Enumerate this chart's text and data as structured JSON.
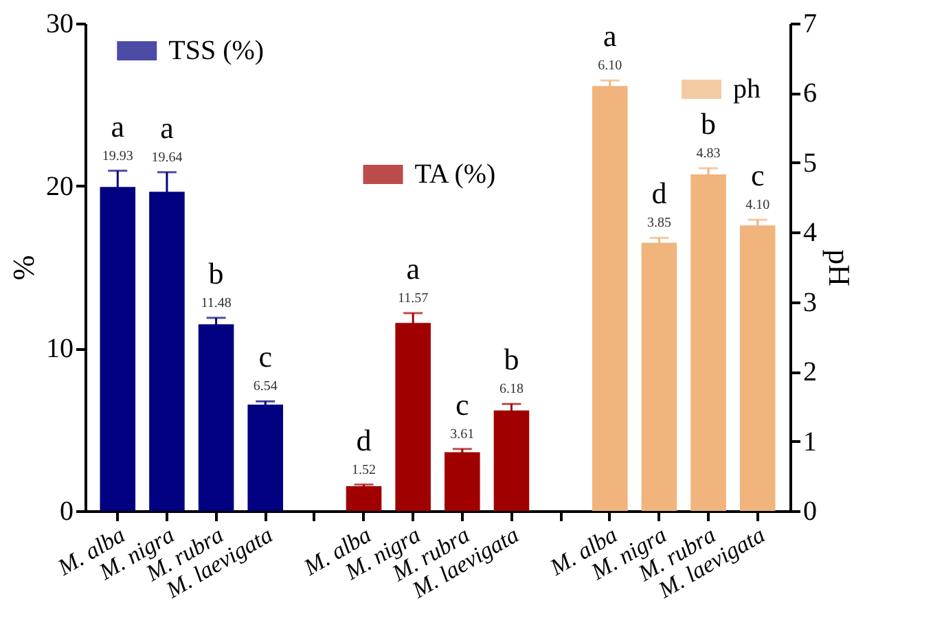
{
  "chart_data": {
    "type": "bar",
    "ylabel": "%",
    "y2label": "pH",
    "categories": [
      "M. alba",
      "M. nigra",
      "M. rubra",
      "M. laevigata",
      null,
      "M. alba",
      "M. nigra",
      "M. rubra",
      "M. laevigata",
      null,
      "M. alba",
      "M. nigra",
      "M. rubra",
      "M. laevigata"
    ],
    "series": [
      {
        "name": "TSS (%)",
        "color": "#000080",
        "values": [
          19.93,
          19.64,
          11.48,
          6.54,
          null,
          null,
          null,
          null,
          null,
          null,
          null,
          null,
          null,
          null
        ],
        "errors": [
          1.0,
          1.2,
          0.4,
          0.2,
          null,
          null,
          null,
          null,
          null,
          null,
          null,
          null,
          null,
          null
        ],
        "value_labels": [
          "19.93",
          "19.64",
          "11.48",
          "6.54",
          null,
          null,
          null,
          null,
          null,
          null,
          null,
          null,
          null,
          null
        ]
      },
      {
        "name": "TA (%)",
        "color": "#a00000",
        "values": [
          null,
          null,
          null,
          null,
          null,
          1.52,
          11.57,
          3.61,
          6.18,
          null,
          null,
          null,
          null,
          null
        ],
        "errors": [
          null,
          null,
          null,
          null,
          null,
          0.1,
          0.6,
          0.2,
          0.4,
          null,
          null,
          null,
          null,
          null
        ],
        "value_labels": [
          null,
          null,
          null,
          null,
          null,
          "1.52",
          "11.57",
          "3.61",
          "6.18",
          null,
          null,
          null,
          null,
          null
        ]
      },
      {
        "name": "ph",
        "color": "#f0b47c",
        "axis": "y2",
        "values": [
          null,
          null,
          null,
          null,
          null,
          null,
          null,
          null,
          null,
          null,
          6.1,
          3.85,
          4.83,
          4.1
        ],
        "errors": [
          null,
          null,
          null,
          null,
          null,
          null,
          null,
          null,
          null,
          null,
          0.08,
          0.07,
          0.09,
          0.08
        ],
        "value_labels": [
          null,
          null,
          null,
          null,
          null,
          null,
          null,
          null,
          null,
          null,
          "6.10",
          "3.85",
          "4.83",
          "4.10"
        ]
      }
    ],
    "ylim": [
      0,
      30
    ],
    "yticks": [
      0,
      10,
      20,
      30
    ],
    "y2lim": [
      0,
      7
    ],
    "y2ticks": [
      0,
      1,
      2,
      3,
      4,
      5,
      6,
      7
    ],
    "grid": false,
    "legend": "top",
    "annotations": [
      "a",
      "a",
      "b",
      "c",
      "d",
      "a",
      "c",
      "b",
      "a",
      "d",
      "b",
      "c"
    ]
  }
}
